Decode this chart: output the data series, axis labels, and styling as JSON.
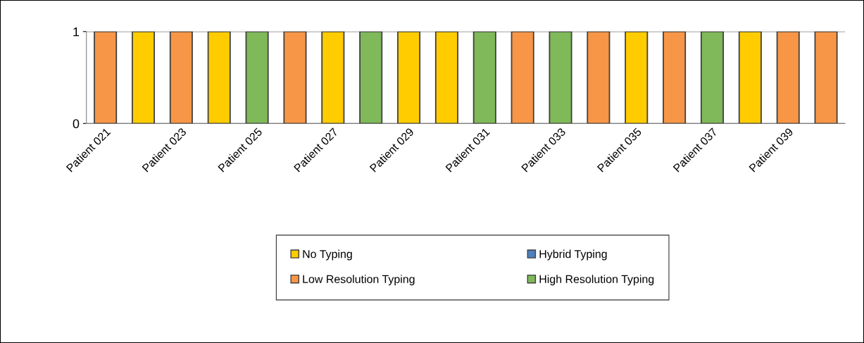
{
  "chart_data": {
    "type": "bar",
    "categories": [
      "Patient 021",
      null,
      "Patient 023",
      null,
      "Patient 025",
      null,
      "Patient 027",
      null,
      "Patient 029",
      null,
      "Patient 031",
      null,
      "Patient 033",
      null,
      "Patient 035",
      null,
      "Patient 037",
      null,
      "Patient 039",
      null
    ],
    "series": [
      {
        "name": "No Typing",
        "color": "#ffcc00",
        "values": [
          null,
          1,
          null,
          1,
          null,
          null,
          1,
          null,
          1,
          1,
          null,
          null,
          null,
          null,
          1,
          null,
          null,
          1,
          null,
          null
        ]
      },
      {
        "name": "Hybrid Typing",
        "color": "#4f81bd",
        "values": [
          null,
          null,
          null,
          null,
          null,
          null,
          null,
          null,
          null,
          null,
          null,
          null,
          null,
          null,
          null,
          null,
          null,
          null,
          null,
          null
        ]
      },
      {
        "name": "Low Resolution Typing",
        "color": "#f79646",
        "values": [
          1,
          null,
          1,
          null,
          null,
          1,
          null,
          null,
          null,
          null,
          null,
          1,
          null,
          1,
          null,
          1,
          null,
          null,
          1,
          1
        ]
      },
      {
        "name": "High Resolution Typing",
        "color": "#7fb95a",
        "values": [
          null,
          null,
          null,
          null,
          1,
          null,
          null,
          1,
          null,
          null,
          1,
          null,
          1,
          null,
          null,
          null,
          1,
          null,
          null,
          null
        ]
      }
    ],
    "ylim": [
      0,
      1
    ],
    "yticks": [
      0,
      1
    ],
    "grid": "y",
    "legend": "bottom"
  }
}
